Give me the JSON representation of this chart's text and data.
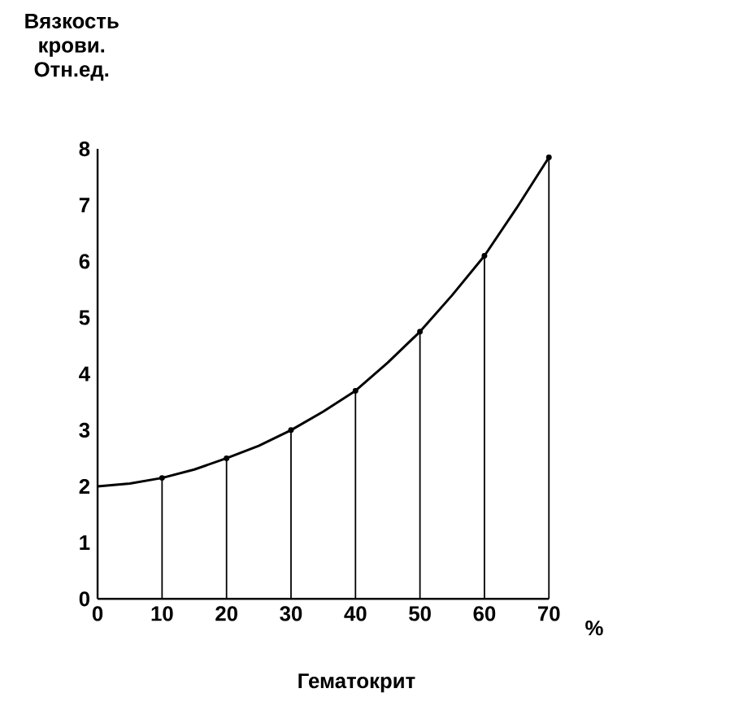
{
  "chart_data": {
    "type": "line",
    "ylabel": "Вязкость крови. Отн.ед.",
    "xlabel": "Гематокрит",
    "annotations": [
      "%"
    ],
    "marker": "none",
    "xlim": [
      0,
      70
    ],
    "ylim": [
      0,
      8
    ],
    "xticks": [
      0,
      10,
      20,
      30,
      40,
      50,
      60,
      70
    ],
    "yticks": [
      0,
      1,
      2,
      3,
      4,
      5,
      6,
      7,
      8
    ],
    "series": [
      {
        "color": "#000000",
        "x": [
          0,
          5,
          10,
          15,
          20,
          25,
          30,
          35,
          40,
          45,
          50,
          55,
          60,
          65,
          70
        ],
        "values": [
          2.0,
          2.05,
          2.15,
          2.3,
          2.5,
          2.72,
          3.0,
          3.33,
          3.7,
          4.2,
          4.75,
          5.4,
          6.1,
          6.95,
          7.85
        ]
      },
      {
        "type": "lollipop",
        "marker": "circle",
        "color": "#000000",
        "x": [
          10,
          20,
          30,
          40,
          50,
          60,
          70
        ],
        "values": [
          2.15,
          2.5,
          3.0,
          3.7,
          4.75,
          6.1,
          7.85
        ]
      }
    ]
  }
}
